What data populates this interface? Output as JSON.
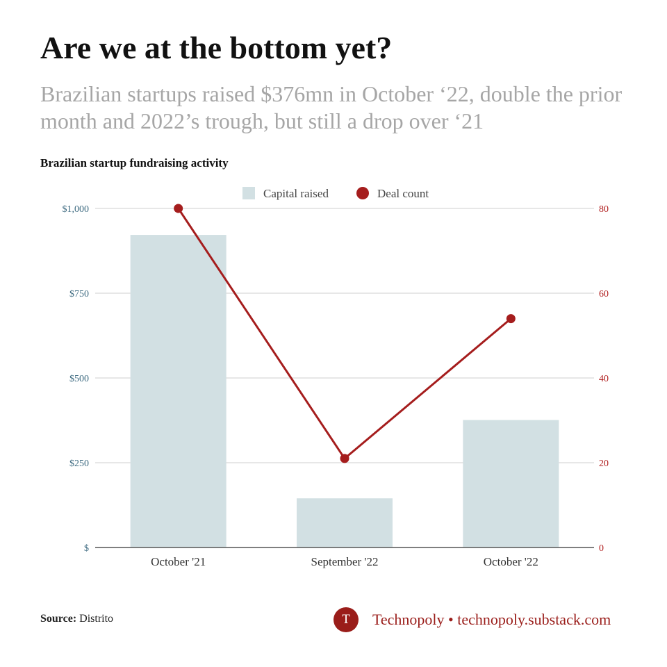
{
  "header": {
    "title": "Are we at the bottom yet?",
    "subtitle": "Brazilian startups raised $376mn in October ‘22, double the prior month and 2022’s trough, but still a drop over ‘21",
    "chart_heading": "Brazilian startup fundraising activity"
  },
  "footer": {
    "source_label": "Source:",
    "source_value": " Distrito",
    "brand_initial": "T",
    "brand_text": "Technopoly • technopoly.substack.com"
  },
  "colors": {
    "bar": "#d2e0e3",
    "line": "#a51d1d",
    "left_axis_text": "#3d6a80",
    "right_axis_text": "#b01e1e",
    "gridline": "#cfcfcf",
    "baseline": "#555555"
  },
  "chart_data": {
    "type": "bar",
    "categories": [
      "October '21",
      "September '22",
      "October '22"
    ],
    "series": [
      {
        "name": "Capital raised",
        "type": "bar",
        "axis": "left",
        "values": [
          922,
          145,
          376
        ]
      },
      {
        "name": "Deal count",
        "type": "line",
        "axis": "right",
        "values": [
          80,
          21,
          54
        ]
      }
    ],
    "left_axis": {
      "ylim": [
        0,
        1000
      ],
      "ticks": [
        0,
        250,
        500,
        750,
        1000
      ],
      "tick_labels": [
        "$",
        "$250",
        "$500",
        "$750",
        "$1,000"
      ]
    },
    "right_axis": {
      "ylim": [
        0,
        80
      ],
      "ticks": [
        0,
        20,
        40,
        60,
        80
      ],
      "tick_labels": [
        "0",
        "20",
        "40",
        "60",
        "80"
      ]
    },
    "legend": {
      "placement": "top-center",
      "entries": [
        "Capital raised",
        "Deal count"
      ]
    },
    "grid": true
  }
}
